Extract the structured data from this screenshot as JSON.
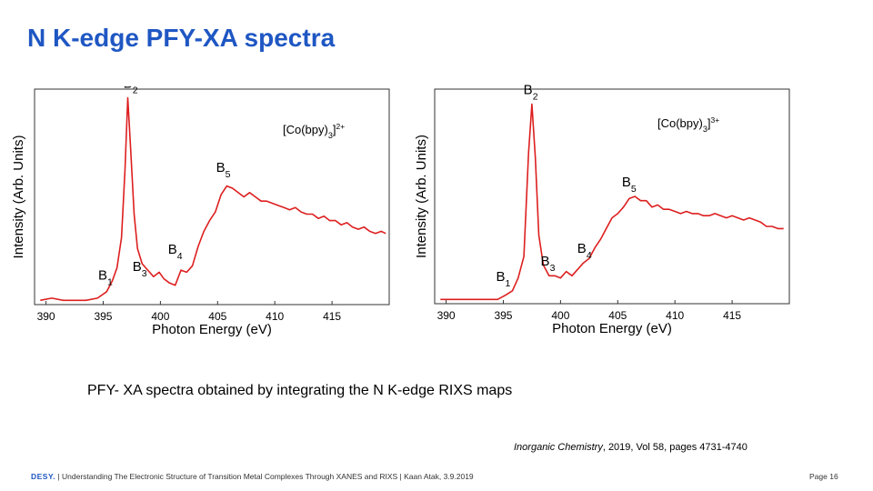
{
  "title": "N K-edge PFY-XA spectra",
  "caption": "PFY- XA spectra obtained by integrating the N K-edge RIXS maps",
  "citation": {
    "journal": "Inorganic Chemistry",
    "details": ", 2019, Vol 58, pages 4731-4740"
  },
  "footer": {
    "logo": "DESY.",
    "text": "| Understanding The Electronic Structure of Transition Metal Complexes Through XANES and RIXS | Kaan Atak, 3.9.2019"
  },
  "page_number": "Page 16",
  "chart_data": [
    {
      "type": "line",
      "compound": {
        "base": "[Co(bpy)",
        "sub": "3",
        "after": "]",
        "sup": "2+"
      },
      "xlabel": "Photon Energy (eV)",
      "ylabel": "Intensity (Arb. Units)",
      "xlim": [
        389,
        420
      ],
      "ylim": [
        0,
        1.0
      ],
      "xticks": [
        390,
        395,
        400,
        405,
        410,
        415
      ],
      "color": "#dd1f1f",
      "series": [
        {
          "name": "[Co(bpy)3]2+",
          "x": [
            389.5,
            390.5,
            391.5,
            392.5,
            393.5,
            394.5,
            395.3,
            395.8,
            396.2,
            396.6,
            396.9,
            397.15,
            397.4,
            397.7,
            398.0,
            398.4,
            398.9,
            399.4,
            399.9,
            400.3,
            400.8,
            401.3,
            401.8,
            402.3,
            402.8,
            403.3,
            403.8,
            404.3,
            404.8,
            405.3,
            405.8,
            406.3,
            406.8,
            407.3,
            407.8,
            408.3,
            408.8,
            409.3,
            409.8,
            410.3,
            410.8,
            411.3,
            411.8,
            412.3,
            412.8,
            413.3,
            413.8,
            414.3,
            414.8,
            415.3,
            415.8,
            416.3,
            416.8,
            417.3,
            417.8,
            418.3,
            418.8,
            419.3,
            419.7
          ],
          "y": [
            0.02,
            0.03,
            0.02,
            0.02,
            0.02,
            0.03,
            0.06,
            0.11,
            0.17,
            0.31,
            0.62,
            0.96,
            0.72,
            0.42,
            0.26,
            0.19,
            0.16,
            0.13,
            0.15,
            0.12,
            0.1,
            0.09,
            0.16,
            0.15,
            0.18,
            0.27,
            0.34,
            0.39,
            0.43,
            0.51,
            0.55,
            0.54,
            0.52,
            0.5,
            0.52,
            0.5,
            0.48,
            0.48,
            0.47,
            0.46,
            0.45,
            0.44,
            0.45,
            0.43,
            0.42,
            0.42,
            0.4,
            0.41,
            0.39,
            0.39,
            0.37,
            0.38,
            0.36,
            0.35,
            0.36,
            0.34,
            0.33,
            0.34,
            0.33
          ]
        }
      ],
      "annotations": [
        {
          "label": "B",
          "sub": "1",
          "x": 395.2,
          "y": 0.1
        },
        {
          "label": "B",
          "sub": "2",
          "x": 397.4,
          "y": 0.99
        },
        {
          "label": "B",
          "sub": "3",
          "x": 398.2,
          "y": 0.14
        },
        {
          "label": "B",
          "sub": "4",
          "x": 401.3,
          "y": 0.22
        },
        {
          "label": "B",
          "sub": "5",
          "x": 405.5,
          "y": 0.6
        }
      ]
    },
    {
      "type": "line",
      "compound": {
        "base": "[Co(bpy)",
        "sub": "3",
        "after": "]",
        "sup": "3+"
      },
      "xlabel": "Photon Energy (eV)",
      "ylabel": "Intensity (Arb. Units)",
      "xlim": [
        389,
        420
      ],
      "ylim": [
        0,
        1.0
      ],
      "xticks": [
        390,
        395,
        400,
        405,
        410,
        415
      ],
      "color": "#dd1f1f",
      "series": [
        {
          "name": "[Co(bpy)3]3+",
          "x": [
            389.5,
            390.5,
            391.5,
            392.5,
            393.5,
            394.5,
            395.2,
            395.8,
            396.3,
            396.8,
            397.2,
            397.5,
            397.8,
            398.1,
            398.5,
            399.0,
            399.5,
            400.0,
            400.5,
            401.0,
            401.5,
            402.0,
            402.5,
            403.0,
            403.5,
            404.0,
            404.5,
            405.0,
            405.5,
            406.0,
            406.5,
            407.0,
            407.5,
            408.0,
            408.5,
            409.0,
            409.5,
            410.0,
            410.5,
            411.0,
            411.5,
            412.0,
            412.5,
            413.0,
            413.5,
            414.0,
            414.5,
            415.0,
            415.5,
            416.0,
            416.5,
            417.0,
            417.5,
            418.0,
            418.5,
            419.0,
            419.5
          ],
          "y": [
            0.02,
            0.02,
            0.02,
            0.02,
            0.02,
            0.02,
            0.04,
            0.06,
            0.12,
            0.22,
            0.7,
            0.93,
            0.68,
            0.32,
            0.18,
            0.13,
            0.13,
            0.12,
            0.15,
            0.13,
            0.16,
            0.19,
            0.21,
            0.26,
            0.3,
            0.35,
            0.4,
            0.42,
            0.45,
            0.49,
            0.5,
            0.48,
            0.48,
            0.45,
            0.46,
            0.44,
            0.44,
            0.43,
            0.42,
            0.43,
            0.42,
            0.42,
            0.41,
            0.41,
            0.42,
            0.41,
            0.4,
            0.41,
            0.4,
            0.39,
            0.4,
            0.39,
            0.38,
            0.36,
            0.36,
            0.35,
            0.35
          ]
        }
      ],
      "annotations": [
        {
          "label": "B",
          "sub": "1",
          "x": 395.0,
          "y": 0.09
        },
        {
          "label": "B",
          "sub": "2",
          "x": 397.4,
          "y": 0.96
        },
        {
          "label": "B",
          "sub": "3",
          "x": 398.9,
          "y": 0.16
        },
        {
          "label": "B",
          "sub": "4",
          "x": 402.1,
          "y": 0.22
        },
        {
          "label": "B",
          "sub": "5",
          "x": 406.0,
          "y": 0.53
        }
      ]
    }
  ]
}
